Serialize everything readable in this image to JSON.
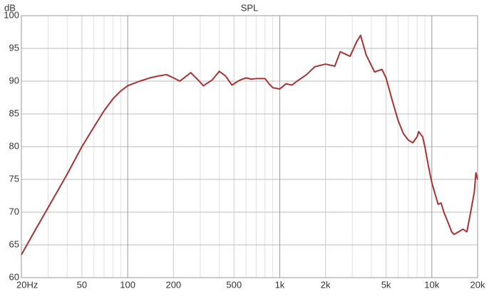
{
  "chart_data": {
    "type": "line",
    "title": "SPL",
    "y_label": "dB",
    "log_x": true,
    "grid": true,
    "xlim": [
      20,
      20000
    ],
    "ylim": [
      60,
      100
    ],
    "xticks": [
      {
        "value": 20,
        "label": "20Hz"
      },
      50,
      100,
      200,
      500,
      {
        "value": 1000,
        "label": "1k"
      },
      {
        "value": 2000,
        "label": "2k"
      },
      {
        "value": 5000,
        "label": "5k"
      },
      {
        "value": 10000,
        "label": "10k"
      },
      {
        "value": 20000,
        "label": "20k"
      }
    ],
    "x_minor_ticks": [
      30,
      40,
      60,
      70,
      80,
      90,
      300,
      400,
      600,
      700,
      800,
      900,
      3000,
      4000,
      6000,
      7000,
      8000,
      9000
    ],
    "yticks": [
      60,
      65,
      70,
      75,
      80,
      85,
      90,
      95,
      100
    ],
    "series": [
      {
        "color": "#a83232",
        "x": [
          20,
          25,
          30,
          40,
          50,
          60,
          70,
          80,
          90,
          100,
          120,
          140,
          160,
          180,
          200,
          220,
          260,
          290,
          315,
          360,
          400,
          440,
          485,
          540,
          600,
          650,
          700,
          800,
          850,
          900,
          1000,
          1100,
          1200,
          1300,
          1500,
          1700,
          2000,
          2300,
          2500,
          2900,
          3200,
          3400,
          3700,
          4200,
          4700,
          5000,
          5500,
          6000,
          6500,
          7000,
          7500,
          8000,
          8200,
          8700,
          9000,
          9500,
          10000,
          10500,
          11000,
          11500,
          12000,
          13000,
          13500,
          14000,
          15000,
          16000,
          17000,
          18000,
          19000,
          19500,
          20000
        ],
        "values": [
          63.5,
          67.5,
          70.7,
          75.8,
          80,
          83,
          85.5,
          87.3,
          88.5,
          89.3,
          90,
          90.5,
          90.8,
          91,
          90.5,
          90,
          91.3,
          90.2,
          89.3,
          90.2,
          91.5,
          90.8,
          89.4,
          90.1,
          90.5,
          90.3,
          90.4,
          90.4,
          89.6,
          89,
          88.8,
          89.6,
          89.4,
          90,
          91,
          92.2,
          92.6,
          92.3,
          94.5,
          93.8,
          96,
          97,
          94,
          91.4,
          91.8,
          90.5,
          87,
          84,
          82,
          81,
          80.6,
          81.5,
          82.3,
          81.5,
          80,
          77,
          74.5,
          72.8,
          71.2,
          71.4,
          70,
          68,
          67,
          66.6,
          67,
          67.4,
          67,
          70,
          73,
          76,
          75
        ]
      }
    ]
  }
}
